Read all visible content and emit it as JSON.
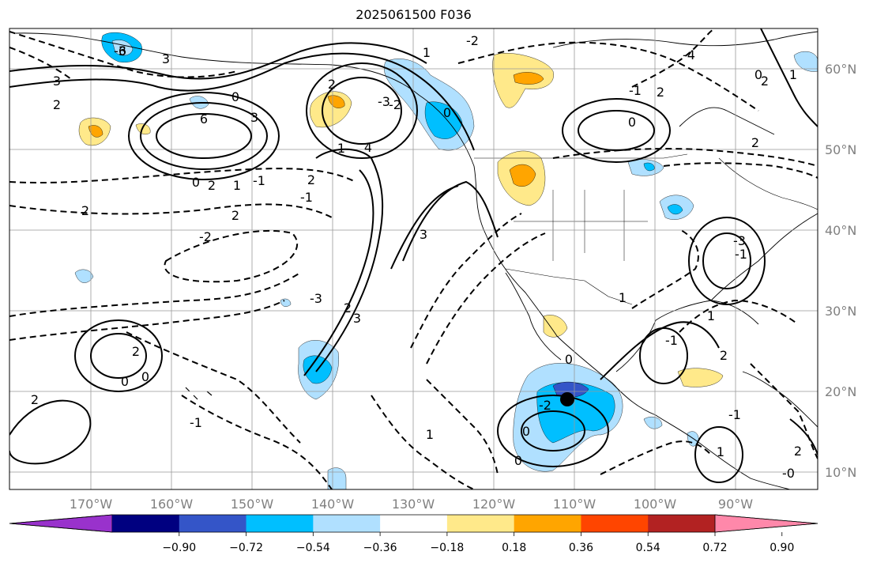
{
  "title": "2025061500 F036",
  "map": {
    "lon_labels": [
      "170°W",
      "160°W",
      "150°W",
      "140°W",
      "130°W",
      "120°W",
      "110°W",
      "100°W",
      "90°W"
    ],
    "lat_labels": [
      "60°N",
      "50°N",
      "40°N",
      "30°N",
      "20°N",
      "10°N"
    ],
    "grid_color": "#999999",
    "storm_marker": "filled-black-circle",
    "contour_labels": [
      "3",
      "6",
      "3",
      "2",
      "0",
      "3",
      "4",
      "6",
      "2",
      "2",
      "-1",
      "2",
      "1",
      "-1",
      "2",
      "-2",
      "-3",
      "-4",
      "0",
      "1",
      "-2",
      "1",
      "2",
      "-3",
      "0",
      "3",
      "-3",
      "2",
      "3",
      "-2",
      "-1",
      "0",
      "2",
      "2",
      "-1",
      "-3",
      "2",
      "1",
      "0",
      "2",
      "1",
      "-1",
      "1",
      "2",
      "0",
      "0",
      "1",
      "-1",
      "2",
      "-2",
      "0",
      "0",
      "0",
      "1",
      "-1",
      "2",
      "-0"
    ]
  },
  "colorbar": {
    "ticks": [
      "−0.90",
      "−0.72",
      "−0.54",
      "−0.36",
      "−0.18",
      "0.18",
      "0.36",
      "0.54",
      "0.72",
      "0.90"
    ],
    "colors": [
      "#9932cc",
      "#000080",
      "#3455c8",
      "#00bfff",
      "#b0e0ff",
      "#ffffff",
      "#ffe98a",
      "#ffa500",
      "#ff4500",
      "#b22222",
      "#ff88aa"
    ]
  }
}
